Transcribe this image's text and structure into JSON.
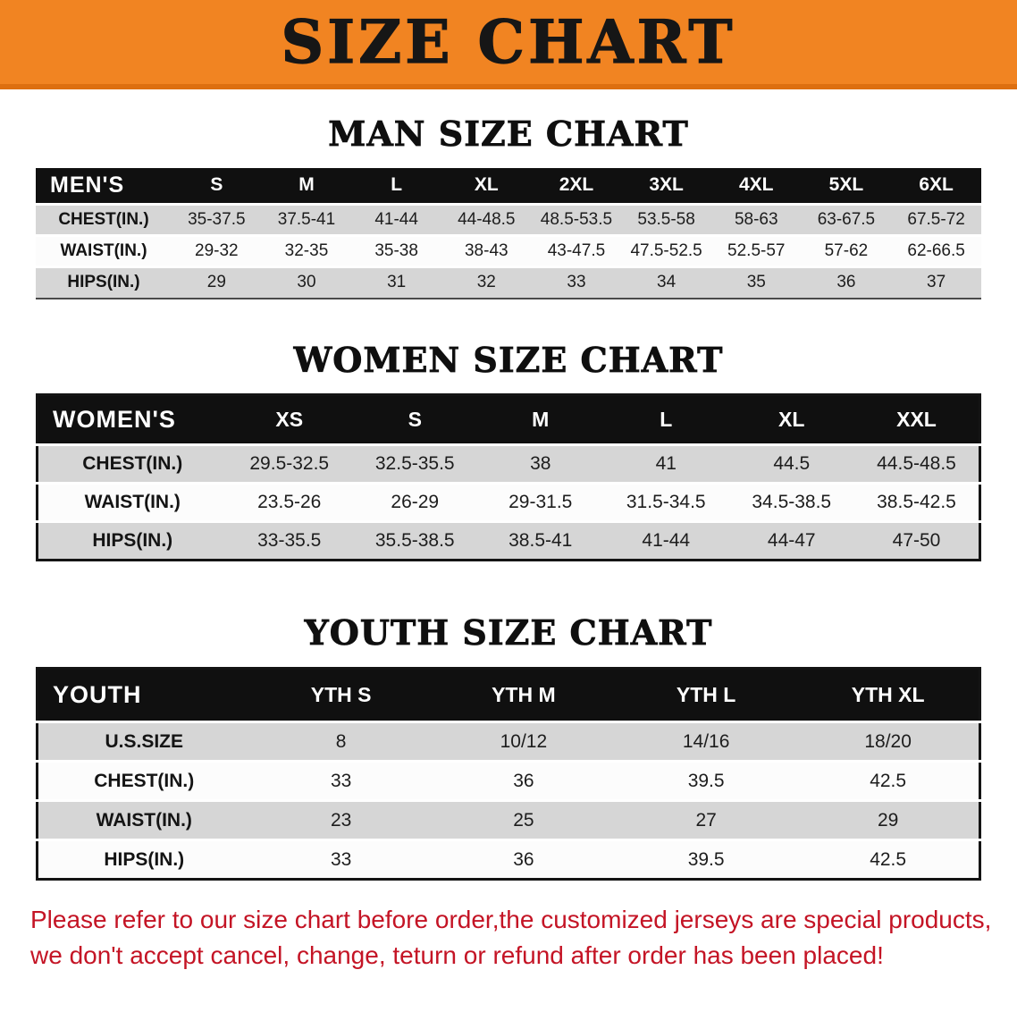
{
  "banner": {
    "title": "SIZE CHART",
    "bg_color": "#f18422",
    "text_color": "#161616"
  },
  "sections": [
    {
      "heading": "MAN SIZE CHART",
      "table": {
        "corner": "MEN'S",
        "columns": [
          "S",
          "M",
          "L",
          "XL",
          "2XL",
          "3XL",
          "4XL",
          "5XL",
          "6XL"
        ],
        "rows": [
          {
            "label": "CHEST(IN.)",
            "values": [
              "35-37.5",
              "37.5-41",
              "41-44",
              "44-48.5",
              "48.5-53.5",
              "53.5-58",
              "58-63",
              "63-67.5",
              "67.5-72"
            ]
          },
          {
            "label": "WAIST(IN.)",
            "values": [
              "29-32",
              "32-35",
              "35-38",
              "38-43",
              "43-47.5",
              "47.5-52.5",
              "52.5-57",
              "57-62",
              "62-66.5"
            ]
          },
          {
            "label": "HIPS(IN.)",
            "values": [
              "29",
              "30",
              "31",
              "32",
              "33",
              "34",
              "35",
              "36",
              "37"
            ]
          }
        ]
      }
    },
    {
      "heading": "WOMEN SIZE CHART",
      "table": {
        "corner": "WOMEN'S",
        "columns": [
          "XS",
          "S",
          "M",
          "L",
          "XL",
          "XXL"
        ],
        "rows": [
          {
            "label": "CHEST(IN.)",
            "values": [
              "29.5-32.5",
              "32.5-35.5",
              "38",
              "41",
              "44.5",
              "44.5-48.5"
            ]
          },
          {
            "label": "WAIST(IN.)",
            "values": [
              "23.5-26",
              "26-29",
              "29-31.5",
              "31.5-34.5",
              "34.5-38.5",
              "38.5-42.5"
            ]
          },
          {
            "label": "HIPS(IN.)",
            "values": [
              "33-35.5",
              "35.5-38.5",
              "38.5-41",
              "41-44",
              "44-47",
              "47-50"
            ]
          }
        ]
      }
    },
    {
      "heading": "YOUTH SIZE CHART",
      "table": {
        "corner": "YOUTH",
        "columns": [
          "YTH S",
          "YTH M",
          "YTH L",
          "YTH XL"
        ],
        "rows": [
          {
            "label": "U.S.SIZE",
            "values": [
              "8",
              "10/12",
              "14/16",
              "18/20"
            ]
          },
          {
            "label": "CHEST(IN.)",
            "values": [
              "33",
              "36",
              "39.5",
              "42.5"
            ]
          },
          {
            "label": "WAIST(IN.)",
            "values": [
              "23",
              "25",
              "27",
              "29"
            ]
          },
          {
            "label": "HIPS(IN.)",
            "values": [
              "33",
              "36",
              "39.5",
              "42.5"
            ]
          }
        ]
      }
    }
  ],
  "footer_note": {
    "line1": "Please refer to our size chart before order,the customized jerseys are special products,",
    "line2": "we don't accept cancel, change, teturn or refund after order has been placed!",
    "color": "#c41425"
  }
}
